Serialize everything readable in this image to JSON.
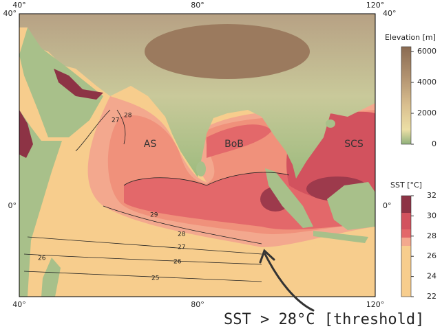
{
  "map": {
    "axes": {
      "top": [
        "40°",
        "80°",
        "120°"
      ],
      "bottom": [
        "40°",
        "80°",
        "120°"
      ],
      "left": [
        "40°",
        "0°"
      ],
      "right": [
        "40°",
        "0°"
      ]
    },
    "regions": [
      "AS",
      "BoB",
      "SCS"
    ],
    "contour_labels": [
      "28",
      "27",
      "29",
      "28",
      "27",
      "26",
      "25",
      "26"
    ],
    "legends": [
      {
        "title": "Elevation [m]",
        "ticks": [
          "6000",
          "4000",
          "2000",
          "0"
        ]
      },
      {
        "title": "SST [°C]",
        "ticks": [
          "32",
          "30",
          "28",
          "26",
          "24",
          "22"
        ]
      }
    ],
    "annotation": "SST > 28°C [threshold]"
  }
}
